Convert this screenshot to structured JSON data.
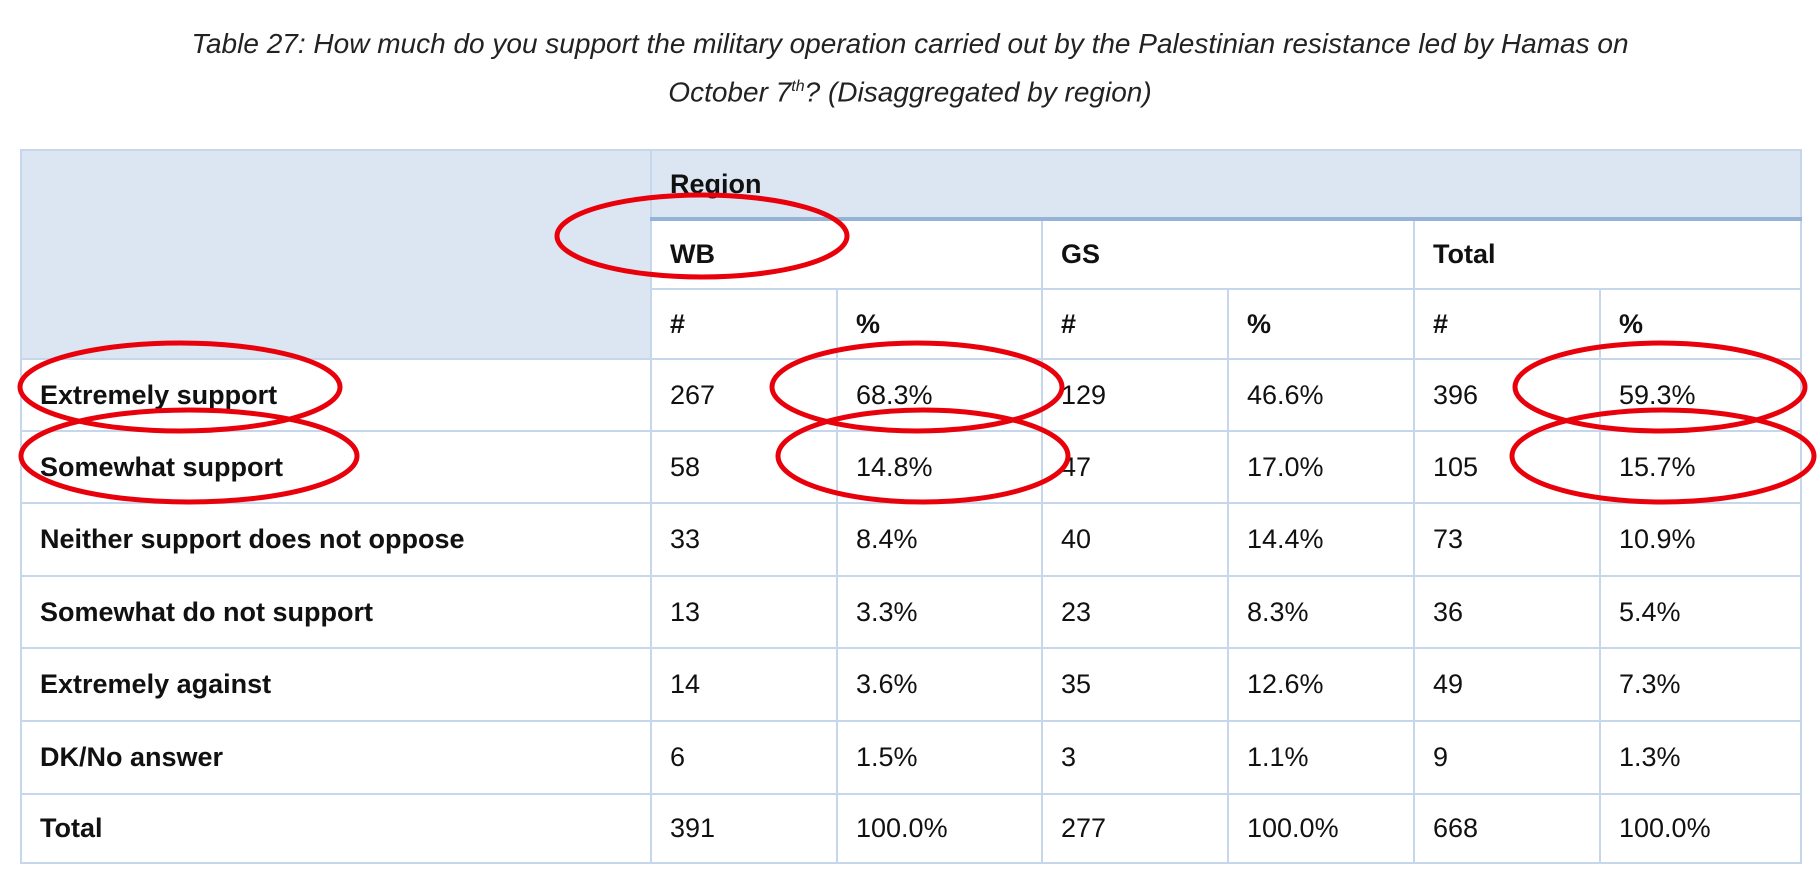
{
  "caption": {
    "line1": "Table 27: How much do you support the military operation carried out by the Palestinian resistance led by Hamas on",
    "line2_pre": "October 7",
    "line2_sup": "th",
    "line2_post": "? (Disaggregated by region)"
  },
  "header": {
    "region": "Region",
    "groups": [
      "WB",
      "GS",
      "Total"
    ],
    "sub": [
      "#",
      "%",
      "#",
      "%",
      "#",
      "%"
    ]
  },
  "rows": [
    {
      "label": "Extremely support",
      "values": [
        "267",
        "68.3%",
        "129",
        "46.6%",
        "396",
        "59.3%"
      ]
    },
    {
      "label": "Somewhat support",
      "values": [
        "58",
        "14.8%",
        "47",
        "17.0%",
        "105",
        "15.7%"
      ]
    },
    {
      "label": "Neither support does not oppose",
      "values": [
        "33",
        "8.4%",
        "40",
        "14.4%",
        "73",
        "10.9%"
      ]
    },
    {
      "label": "Somewhat do not support",
      "values": [
        "13",
        "3.3%",
        "23",
        "8.3%",
        "36",
        "5.4%"
      ]
    },
    {
      "label": "Extremely against",
      "values": [
        "14",
        "3.6%",
        "35",
        "12.6%",
        "49",
        "7.3%"
      ]
    },
    {
      "label": "DK/No answer",
      "values": [
        "6",
        "1.5%",
        "3",
        "1.1%",
        "9",
        "1.3%"
      ]
    },
    {
      "label": "Total",
      "values": [
        "391",
        "100.0%",
        "277",
        "100.0%",
        "668",
        "100.0%"
      ]
    }
  ],
  "colors": {
    "header_bg": "#dce6f2",
    "border": "#c6d7ec",
    "annotation": "#e8000b"
  },
  "annotations": [
    "red ellipse around WB",
    "red ellipse around Extremely support",
    "red ellipse around Somewhat support",
    "red ellipse around 68.3%",
    "red ellipse around 14.8%",
    "red ellipse around 59.3%",
    "red ellipse around 15.7%"
  ]
}
